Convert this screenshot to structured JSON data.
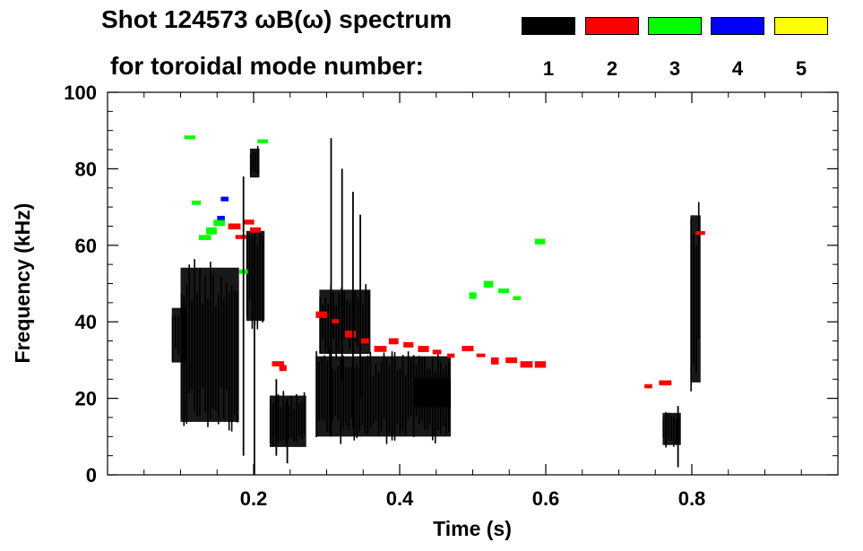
{
  "title_line1": "Shot 124573 ωB(ω) spectrum",
  "title_line2": "for toroidal mode number:",
  "legend": [
    {
      "label": "1",
      "color": "#000000"
    },
    {
      "label": "2",
      "color": "#ff0000"
    },
    {
      "label": "3",
      "color": "#00ff00"
    },
    {
      "label": "4",
      "color": "#0000ff"
    },
    {
      "label": "5",
      "color": "#ffff00"
    }
  ],
  "chart_data": {
    "type": "spectrogram",
    "xlabel": "Time (s)",
    "ylabel": "Frequency (kHz)",
    "xlim": [
      0.0,
      1.0
    ],
    "ylim": [
      0,
      100
    ],
    "xticks": [
      0.2,
      0.4,
      0.6,
      0.8
    ],
    "xtick_labels": [
      "0.2",
      "0.4",
      "0.6",
      "0.8"
    ],
    "yticks": [
      0,
      20,
      40,
      60,
      80,
      100
    ],
    "ytick_labels": [
      "0",
      "20",
      "40",
      "60",
      "80",
      "100"
    ],
    "grid": false,
    "series": [
      {
        "mode": 1,
        "color": "#000000",
        "regions": [
          {
            "t0": 0.088,
            "t1": 0.108,
            "f0": 28,
            "f1": 45
          },
          {
            "t0": 0.1,
            "t1": 0.18,
            "f0": 10,
            "f1": 58
          },
          {
            "t0": 0.19,
            "t1": 0.215,
            "f0": 38,
            "f1": 66
          },
          {
            "t0": 0.195,
            "t1": 0.208,
            "f0": 77,
            "f1": 86
          },
          {
            "t0": 0.222,
            "t1": 0.272,
            "f0": 6,
            "f1": 22
          },
          {
            "t0": 0.285,
            "t1": 0.47,
            "f0": 8,
            "f1": 33
          },
          {
            "t0": 0.29,
            "t1": 0.36,
            "f0": 30,
            "f1": 50
          },
          {
            "t0": 0.42,
            "t1": 0.47,
            "f0": 17,
            "f1": 26
          },
          {
            "t0": 0.76,
            "t1": 0.785,
            "f0": 7,
            "f1": 17
          },
          {
            "t0": 0.798,
            "t1": 0.812,
            "f0": 20,
            "f1": 72
          }
        ]
      },
      {
        "mode": 2,
        "color": "#ff0000",
        "points": [
          [
            0.29,
            42
          ],
          [
            0.31,
            40
          ],
          [
            0.33,
            37
          ],
          [
            0.35,
            35
          ],
          [
            0.37,
            33
          ],
          [
            0.39,
            35
          ],
          [
            0.41,
            34
          ],
          [
            0.43,
            33
          ],
          [
            0.45,
            32
          ],
          [
            0.47,
            31
          ],
          [
            0.49,
            33
          ],
          [
            0.51,
            31
          ],
          [
            0.53,
            30
          ],
          [
            0.55,
            30
          ],
          [
            0.57,
            29
          ],
          [
            0.59,
            29
          ],
          [
            0.17,
            65
          ],
          [
            0.18,
            62
          ],
          [
            0.19,
            66
          ],
          [
            0.2,
            64
          ],
          [
            0.23,
            29
          ],
          [
            0.24,
            28
          ],
          [
            0.74,
            23
          ],
          [
            0.76,
            24
          ],
          [
            0.81,
            63
          ]
        ]
      },
      {
        "mode": 3,
        "color": "#00ff00",
        "points": [
          [
            0.13,
            62
          ],
          [
            0.14,
            64
          ],
          [
            0.15,
            66
          ],
          [
            0.12,
            71
          ],
          [
            0.11,
            88
          ],
          [
            0.5,
            47
          ],
          [
            0.52,
            50
          ],
          [
            0.54,
            48
          ],
          [
            0.56,
            46
          ],
          [
            0.59,
            61
          ],
          [
            0.21,
            87
          ],
          [
            0.185,
            53
          ]
        ]
      },
      {
        "mode": 4,
        "color": "#0000ff",
        "points": [
          [
            0.155,
            67
          ],
          [
            0.16,
            72
          ]
        ]
      },
      {
        "mode": 5,
        "color": "#ffff00",
        "points": []
      }
    ]
  }
}
